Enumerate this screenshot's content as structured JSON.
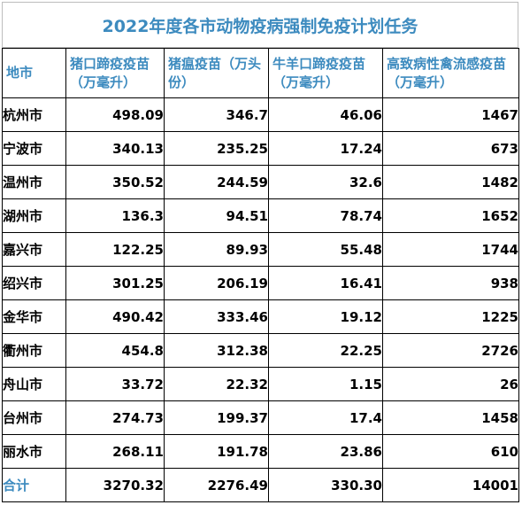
{
  "title": "2022年度各市动物疫病强制免疫计划任务",
  "headers": [
    "地市",
    "猪口蹄疫疫苗（万毫升）",
    "猪瘟疫苗（万头份）",
    "牛羊口蹄疫疫苗（万毫升）",
    "高致病性禽流感疫苗（万毫升）"
  ],
  "rows": [
    {
      "city": "杭州市",
      "c1": "498.09",
      "c2": "346.7",
      "c3": "46.06",
      "c4": "1467"
    },
    {
      "city": "宁波市",
      "c1": "340.13",
      "c2": "235.25",
      "c3": "17.24",
      "c4": "673"
    },
    {
      "city": "温州市",
      "c1": "350.52",
      "c2": "244.59",
      "c3": "32.6",
      "c4": "1482"
    },
    {
      "city": "湖州市",
      "c1": "136.3",
      "c2": "94.51",
      "c3": "78.74",
      "c4": "1652"
    },
    {
      "city": "嘉兴市",
      "c1": "122.25",
      "c2": "89.93",
      "c3": "55.48",
      "c4": "1744"
    },
    {
      "city": "绍兴市",
      "c1": "301.25",
      "c2": "206.19",
      "c3": "16.41",
      "c4": "938"
    },
    {
      "city": "金华市",
      "c1": "490.42",
      "c2": "333.46",
      "c3": "19.12",
      "c4": "1225"
    },
    {
      "city": "衢州市",
      "c1": "454.8",
      "c2": "312.38",
      "c3": "22.25",
      "c4": "2726"
    },
    {
      "city": "舟山市",
      "c1": "33.72",
      "c2": "22.32",
      "c3": "1.15",
      "c4": "26"
    },
    {
      "city": "台州市",
      "c1": "274.73",
      "c2": "199.37",
      "c3": "17.4",
      "c4": "1458"
    },
    {
      "city": "丽水市",
      "c1": "268.11",
      "c2": "191.78",
      "c3": "23.86",
      "c4": "610"
    }
  ],
  "total": {
    "city": "合计",
    "c1": "3270.32",
    "c2": "2276.49",
    "c3": "330.30",
    "c4": "14001"
  },
  "colors": {
    "accent": "#3d8bbf",
    "border": "#000000",
    "title_border": "#bdbdbd"
  }
}
